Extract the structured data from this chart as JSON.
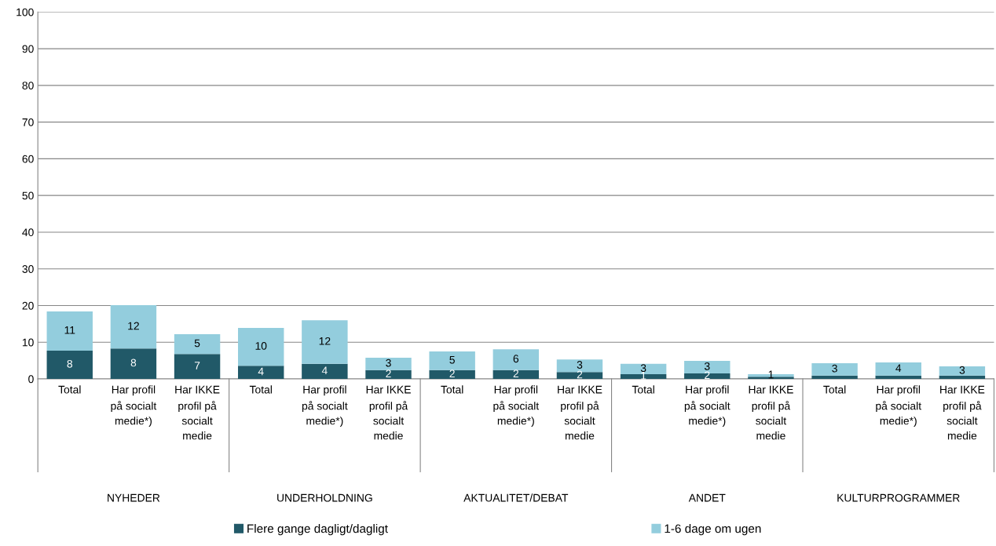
{
  "chart_data": {
    "type": "bar",
    "stacked": true,
    "categories": [
      "Total",
      "Har profil\npå socialt\nmedie*)",
      "Har IKKE\nprofil på\nsocialt\nmedie",
      "Total",
      "Har profil\npå socialt\nmedie*)",
      "Har IKKE\nprofil på\nsocialt\nmedie",
      "Total",
      "Har profil\npå socialt\nmedie*)",
      "Har IKKE\nprofil på\nsocialt\nmedie",
      "Total",
      "Har profil\npå socialt\nmedie*)",
      "Har IKKE\nprofil på\nsocialt\nmedie",
      "Total",
      "Har profil\npå socialt\nmedie*)",
      "Har IKKE\nprofil på\nsocialt\nmedie"
    ],
    "series": [
      {
        "name": "Flere gange dagligt/dagligt",
        "color": "#215968",
        "values": [
          7.7,
          8.3,
          6.8,
          3.6,
          4.1,
          2.4,
          2.4,
          2.4,
          1.9,
          1.3,
          1.5,
          0.6,
          0.9,
          0.9,
          0.9
        ],
        "value_labels": [
          "8",
          "8",
          "7",
          "4",
          "4",
          "2",
          "2",
          "2",
          "2",
          "1",
          "2",
          null,
          null,
          null,
          null
        ]
      },
      {
        "name": "1-6 dage om ugen",
        "color": "#93cddd",
        "values": [
          10.7,
          11.8,
          5.4,
          10.3,
          11.9,
          3.4,
          5.1,
          5.7,
          3.4,
          2.8,
          3.4,
          0.7,
          3.4,
          3.6,
          2.5
        ],
        "value_labels": [
          "11",
          "12",
          "5",
          "10",
          "12",
          "3",
          "5",
          "6",
          "3",
          "3",
          "3",
          "1",
          "3",
          "4",
          "3"
        ]
      }
    ],
    "annotations": [
      "NYHEDER",
      "UNDERHOLDNING",
      "AKTUALITET/DEBAT",
      "ANDET",
      "KULTURPROGRAMMER"
    ],
    "ylim": [
      0,
      100
    ],
    "yticks": [
      0,
      10,
      20,
      30,
      40,
      50,
      60,
      70,
      80,
      90,
      100
    ],
    "grid": "y",
    "legend": "bottom"
  }
}
